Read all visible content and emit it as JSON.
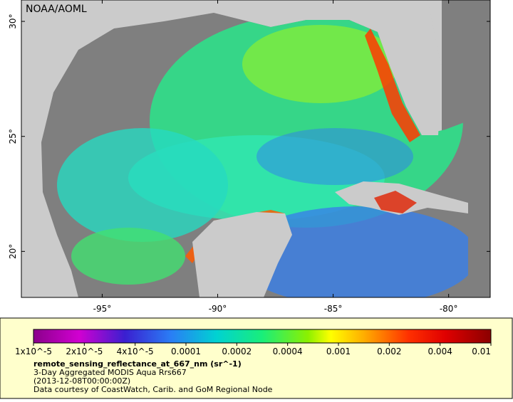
{
  "map": {
    "credit": "NOAA/AOML",
    "lon_range": [
      -98.5,
      -78.2
    ],
    "lat_range": [
      18.0,
      30.93
    ],
    "lon_ticks": [
      {
        "value": -95,
        "label": "-95°"
      },
      {
        "value": -90,
        "label": "-90°"
      },
      {
        "value": -85,
        "label": "-85°"
      },
      {
        "value": -80,
        "label": "-80°"
      }
    ],
    "lat_ticks": [
      {
        "value": 30,
        "label": "30°"
      },
      {
        "value": 25,
        "label": "25°"
      },
      {
        "value": 20,
        "label": "20°"
      }
    ]
  },
  "colorbar": {
    "labels": [
      "1x10^-5",
      "2x10^-5",
      "4x10^-5",
      "0.0001",
      "0.0002",
      "0.0004",
      "0.001",
      "0.002",
      "0.004",
      "0.01"
    ]
  },
  "legend": {
    "variable": "remote_sensing_reflectance_at_667_nm (sr^-1)",
    "line1": "3-Day Aggregated MODIS Aqua Rrs667",
    "line2": "(2013-12-08T00:00:00Z)",
    "line3": "Data courtesy of CoastWatch, Carib. and GoM Regional Node"
  }
}
